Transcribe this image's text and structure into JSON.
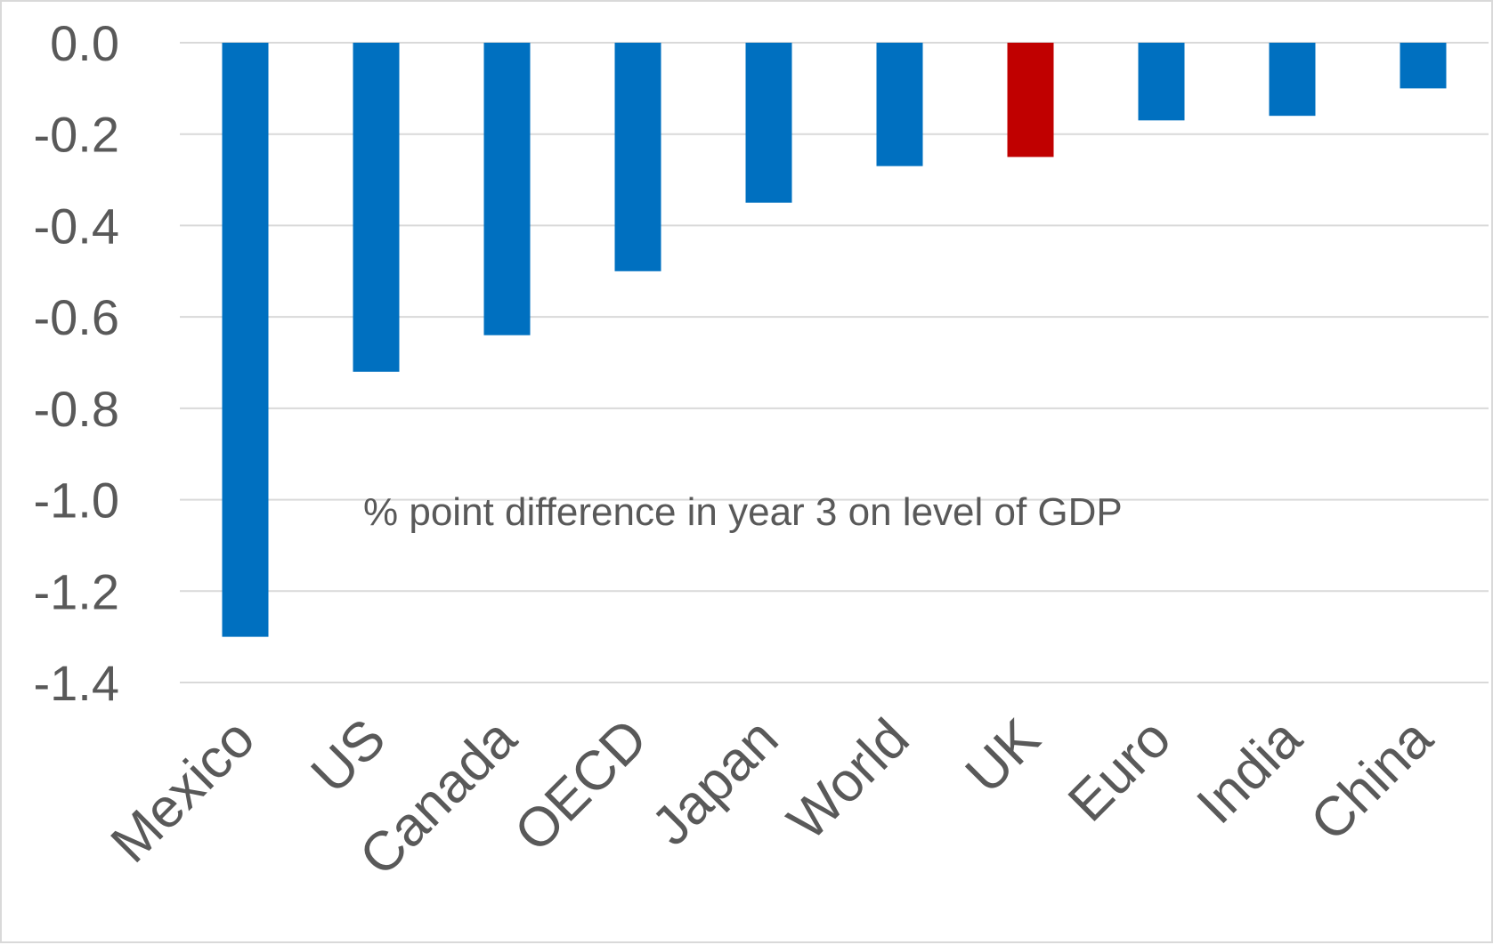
{
  "chart_data": {
    "type": "bar",
    "title": "",
    "xlabel": "",
    "ylabel": "",
    "annotation": "% point difference in year 3 on level of GDP",
    "categories": [
      "Mexico",
      "US",
      "Canada",
      "OECD",
      "Japan",
      "World",
      "UK",
      "Euro",
      "India",
      "China"
    ],
    "values": [
      -1.3,
      -0.72,
      -0.64,
      -0.5,
      -0.35,
      -0.27,
      -0.25,
      -0.17,
      -0.16,
      -0.1
    ],
    "ylim": [
      -1.4,
      0.0
    ],
    "yticks": [
      "0.0",
      "-0.2",
      "-0.4",
      "-0.6",
      "-0.8",
      "-1.0",
      "-1.2",
      "-1.4"
    ],
    "grid": true,
    "colors": {
      "default_bar": "#0070C0",
      "highlight_bar": "#C00000",
      "gridline": "#D9D9D9",
      "text": "#595959"
    },
    "highlight_category": "UK"
  }
}
